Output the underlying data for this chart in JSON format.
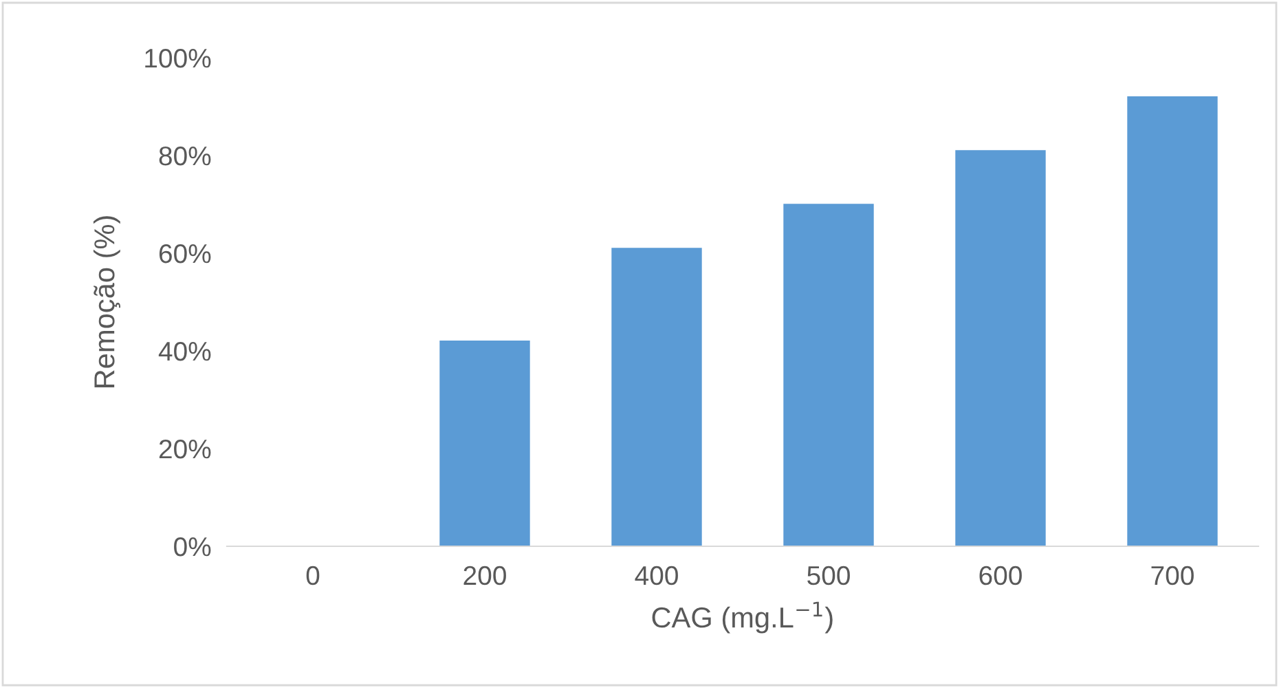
{
  "chart_data": {
    "type": "bar",
    "xlabel": "CAG (mg.L$^{−1}$)",
    "ylabel": "Remoção (%)",
    "categories": [
      "0",
      "200",
      "400",
      "500",
      "600",
      "700"
    ],
    "values": [
      0,
      42,
      61,
      70,
      81,
      92
    ],
    "color": "#5b9bd5",
    "ylim": [
      0,
      100
    ],
    "yticks": [
      {
        "value": 0,
        "label": "0%"
      },
      {
        "value": 20,
        "label": "20%"
      },
      {
        "value": 40,
        "label": "40%"
      },
      {
        "value": 60,
        "label": "60%"
      },
      {
        "value": 80,
        "label": "80%"
      },
      {
        "value": 100,
        "label": "100%"
      }
    ],
    "grid": false
  }
}
